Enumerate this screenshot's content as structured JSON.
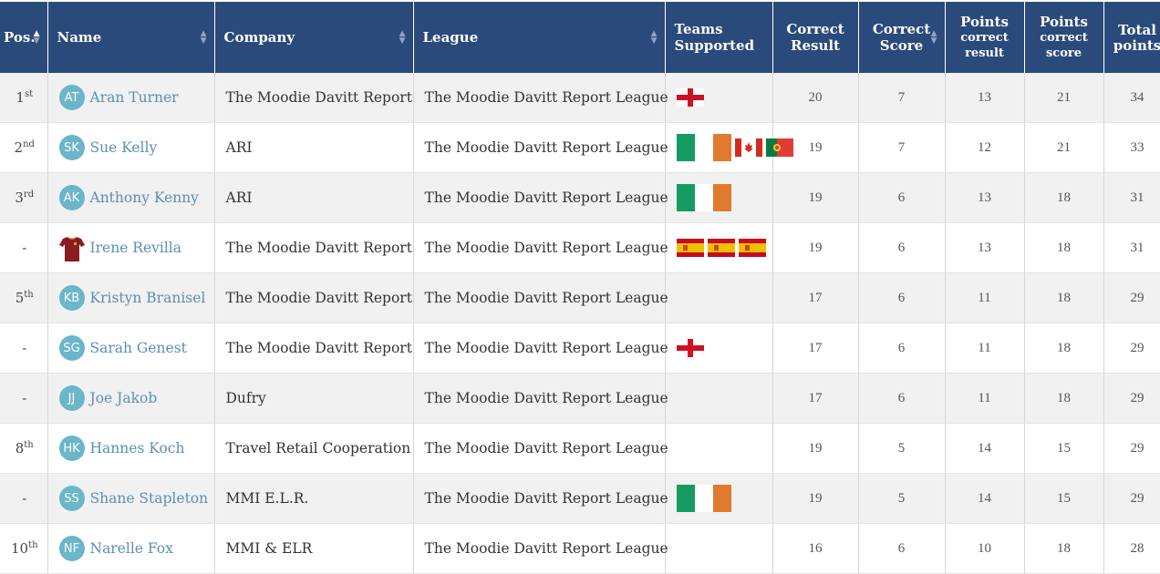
{
  "columns": [
    {
      "label": "Pos.",
      "sub": "",
      "sorted": true
    },
    {
      "label": "Name",
      "sub": ""
    },
    {
      "label": "Company",
      "sub": ""
    },
    {
      "label": "League",
      "sub": ""
    },
    {
      "label": "Teams Supported",
      "sub": ""
    },
    {
      "label": "Correct Result",
      "sub": ""
    },
    {
      "label": "Correct Score",
      "sub": ""
    },
    {
      "label": "Points",
      "sub": "correct result"
    },
    {
      "label": "Points",
      "sub": "correct score"
    },
    {
      "label": "Total",
      "sub": "points"
    }
  ],
  "rows": [
    {
      "pos": "1",
      "suffix": "st",
      "initials": "AT",
      "avatar": "initials",
      "name": "Aran Turner",
      "company": "The Moodie Davitt Report",
      "league": "The Moodie Davitt Report League",
      "flags": [
        "england"
      ],
      "correct_result": "20",
      "correct_score": "7",
      "pts_result": "13",
      "pts_score": "21",
      "total": "34"
    },
    {
      "pos": "2",
      "suffix": "nd",
      "initials": "SK",
      "avatar": "initials",
      "name": "Sue Kelly",
      "company": "ARI",
      "league": "The Moodie Davitt Report League",
      "flags": [
        "ireland",
        "canada",
        "portugal"
      ],
      "correct_result": "19",
      "correct_score": "7",
      "pts_result": "12",
      "pts_score": "21",
      "total": "33"
    },
    {
      "pos": "3",
      "suffix": "rd",
      "initials": "AK",
      "avatar": "initials",
      "name": "Anthony Kenny",
      "company": "ARI",
      "league": "The Moodie Davitt Report League",
      "flags": [
        "ireland"
      ],
      "correct_result": "19",
      "correct_score": "6",
      "pts_result": "13",
      "pts_score": "18",
      "total": "31"
    },
    {
      "pos": "-",
      "suffix": "",
      "initials": "",
      "avatar": "jersey",
      "name": "Irene Revilla",
      "company": "The Moodie Davitt Report",
      "league": "The Moodie Davitt Report League",
      "flags": [
        "spain",
        "spain",
        "spain"
      ],
      "correct_result": "19",
      "correct_score": "6",
      "pts_result": "13",
      "pts_score": "18",
      "total": "31"
    },
    {
      "pos": "5",
      "suffix": "th",
      "initials": "KB",
      "avatar": "initials",
      "name": "Kristyn Branisel",
      "company": "The Moodie Davitt Report",
      "league": "The Moodie Davitt Report League",
      "flags": [],
      "correct_result": "17",
      "correct_score": "6",
      "pts_result": "11",
      "pts_score": "18",
      "total": "29"
    },
    {
      "pos": "-",
      "suffix": "",
      "initials": "SG",
      "avatar": "initials",
      "name": "Sarah Genest",
      "company": "The Moodie Davitt Report",
      "league": "The Moodie Davitt Report League",
      "flags": [
        "england"
      ],
      "correct_result": "17",
      "correct_score": "6",
      "pts_result": "11",
      "pts_score": "18",
      "total": "29"
    },
    {
      "pos": "-",
      "suffix": "",
      "initials": "JJ",
      "avatar": "initials",
      "name": "Joe Jakob",
      "company": "Dufry",
      "league": "The Moodie Davitt Report League",
      "flags": [],
      "correct_result": "17",
      "correct_score": "6",
      "pts_result": "11",
      "pts_score": "18",
      "total": "29"
    },
    {
      "pos": "8",
      "suffix": "th",
      "initials": "HK",
      "avatar": "initials",
      "name": "Hannes Koch",
      "company": "Travel Retail Cooperation",
      "league": "The Moodie Davitt Report League",
      "flags": [],
      "correct_result": "19",
      "correct_score": "5",
      "pts_result": "14",
      "pts_score": "15",
      "total": "29"
    },
    {
      "pos": "-",
      "suffix": "",
      "initials": "SS",
      "avatar": "initials",
      "name": "Shane Stapleton",
      "company": "MMI E.L.R.",
      "league": "The Moodie Davitt Report League",
      "flags": [
        "ireland"
      ],
      "correct_result": "19",
      "correct_score": "5",
      "pts_result": "14",
      "pts_score": "15",
      "total": "29"
    },
    {
      "pos": "10",
      "suffix": "th",
      "initials": "NF",
      "avatar": "initials",
      "name": "Narelle Fox",
      "company": "MMI & ELR",
      "league": "The Moodie Davitt Report League",
      "flags": [],
      "correct_result": "16",
      "correct_score": "6",
      "pts_result": "10",
      "pts_score": "18",
      "total": "28"
    }
  ],
  "colors": {
    "header": "#2a4a7b",
    "avatar": "#6bb6c8",
    "name_link": "#5a8fb8"
  }
}
